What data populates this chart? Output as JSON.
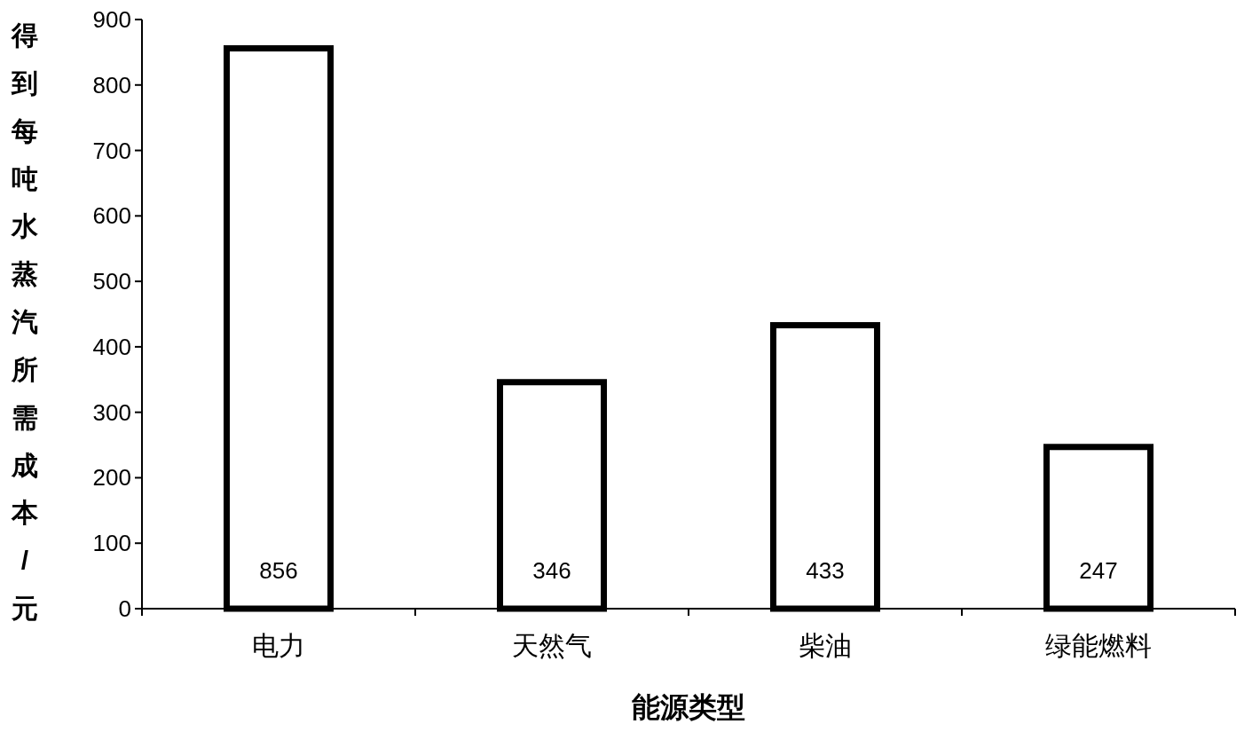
{
  "chart_data": {
    "type": "bar",
    "xlabel": "能源类型",
    "ylabel": "得到每吨水蒸汽所需成本/元",
    "categories": [
      "电力",
      "天然气",
      "柴油",
      "绿能燃料"
    ],
    "values": [
      856,
      346,
      433,
      247
    ],
    "color": "#000000",
    "ylim": [
      0,
      900
    ],
    "yticks": [
      0,
      100,
      200,
      300,
      400,
      500,
      600,
      700,
      800,
      900
    ],
    "data_labels": true
  }
}
